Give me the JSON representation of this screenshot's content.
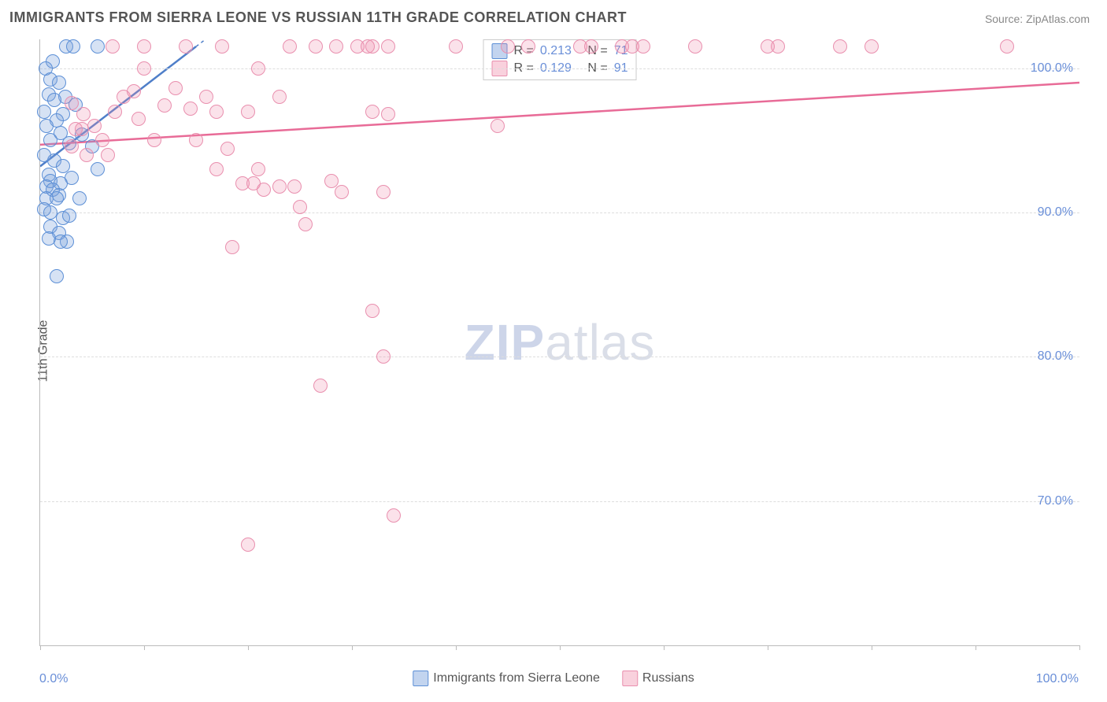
{
  "title": "IMMIGRANTS FROM SIERRA LEONE VS RUSSIAN 11TH GRADE CORRELATION CHART",
  "source": "Source: ZipAtlas.com",
  "ylabel": "11th Grade",
  "watermark": {
    "zip": "ZIP",
    "atlas": "atlas"
  },
  "chart": {
    "type": "scatter",
    "xlim": [
      0,
      100
    ],
    "ylim": [
      60,
      102
    ],
    "ytick_labels": [
      "100.0%",
      "90.0%",
      "80.0%",
      "70.0%"
    ],
    "ytick_vals": [
      100,
      90,
      80,
      70
    ],
    "xaxis_left": "0.0%",
    "xaxis_right": "100.0%",
    "xtick_positions": [
      0,
      10,
      20,
      30,
      40,
      50,
      60,
      70,
      80,
      90,
      100
    ],
    "grid_color": "#dddddd",
    "axis_color": "#bbbbbb",
    "background_color": "#ffffff",
    "marker_radius": 9,
    "series": [
      {
        "key": "blue",
        "label": "Immigrants from Sierra Leone",
        "color_fill": "rgba(120,160,220,0.30)",
        "color_stroke": "#5c8fd6",
        "R": "0.213",
        "N": "71",
        "trend": {
          "x1": 0,
          "y1": 93.2,
          "x2": 15,
          "y2": 101.5,
          "color": "#4f7fc9",
          "width": 2.5,
          "dash_extend": true
        },
        "points": [
          [
            2.5,
            101.5
          ],
          [
            3.2,
            101.5
          ],
          [
            5.5,
            101.5
          ],
          [
            1.2,
            100.5
          ],
          [
            0.5,
            100.0
          ],
          [
            1.0,
            99.2
          ],
          [
            1.8,
            99.0
          ],
          [
            0.8,
            98.2
          ],
          [
            2.4,
            98.0
          ],
          [
            1.4,
            97.8
          ],
          [
            3.4,
            97.5
          ],
          [
            0.4,
            97.0
          ],
          [
            2.2,
            96.8
          ],
          [
            1.6,
            96.4
          ],
          [
            0.6,
            96.0
          ],
          [
            2.0,
            95.5
          ],
          [
            4.0,
            95.4
          ],
          [
            1.0,
            95.0
          ],
          [
            2.8,
            94.8
          ],
          [
            5.0,
            94.6
          ],
          [
            0.4,
            94.0
          ],
          [
            1.4,
            93.6
          ],
          [
            2.2,
            93.2
          ],
          [
            0.8,
            92.6
          ],
          [
            3.0,
            92.4
          ],
          [
            1.0,
            92.2
          ],
          [
            2.0,
            92.0
          ],
          [
            0.6,
            91.8
          ],
          [
            1.2,
            91.6
          ],
          [
            1.8,
            91.2
          ],
          [
            5.5,
            93.0
          ],
          [
            0.6,
            91.0
          ],
          [
            1.6,
            91.0
          ],
          [
            3.8,
            91.0
          ],
          [
            0.4,
            90.2
          ],
          [
            1.0,
            90.0
          ],
          [
            2.2,
            89.6
          ],
          [
            1.0,
            89.0
          ],
          [
            1.8,
            88.6
          ],
          [
            0.8,
            88.2
          ],
          [
            2.6,
            88.0
          ],
          [
            1.6,
            85.6
          ],
          [
            2.0,
            88.0
          ],
          [
            2.8,
            89.8
          ]
        ]
      },
      {
        "key": "pink",
        "label": "Russians",
        "color_fill": "rgba(240,140,170,0.25)",
        "color_stroke": "#e98fae",
        "R": "0.129",
        "N": "91",
        "trend": {
          "x1": 0,
          "y1": 94.7,
          "x2": 100,
          "y2": 99.0,
          "color": "#e86b97",
          "width": 2.5,
          "dash_extend": false
        },
        "points": [
          [
            7.0,
            101.5
          ],
          [
            10.0,
            101.5
          ],
          [
            14.0,
            101.5
          ],
          [
            17.5,
            101.5
          ],
          [
            24.0,
            101.5
          ],
          [
            26.5,
            101.5
          ],
          [
            28.5,
            101.5
          ],
          [
            30.5,
            101.5
          ],
          [
            31.5,
            101.5
          ],
          [
            32.0,
            101.5
          ],
          [
            33.5,
            101.5
          ],
          [
            40.0,
            101.5
          ],
          [
            45.0,
            101.5
          ],
          [
            47.0,
            101.5
          ],
          [
            52.0,
            101.5
          ],
          [
            53.0,
            101.5
          ],
          [
            56.0,
            101.5
          ],
          [
            57.0,
            101.5
          ],
          [
            58.0,
            101.5
          ],
          [
            63.0,
            101.5
          ],
          [
            70.0,
            101.5
          ],
          [
            71.0,
            101.5
          ],
          [
            77.0,
            101.5
          ],
          [
            80.0,
            101.5
          ],
          [
            93.0,
            101.5
          ],
          [
            3.0,
            97.6
          ],
          [
            4.2,
            96.8
          ],
          [
            8.0,
            98.0
          ],
          [
            9.0,
            98.4
          ],
          [
            10.0,
            100.0
          ],
          [
            12.0,
            97.4
          ],
          [
            13.0,
            98.6
          ],
          [
            14.5,
            97.2
          ],
          [
            16.0,
            98.0
          ],
          [
            17.0,
            97.0
          ],
          [
            20.0,
            97.0
          ],
          [
            21.0,
            100.0
          ],
          [
            23.0,
            98.0
          ],
          [
            32.0,
            97.0
          ],
          [
            44.0,
            96.0
          ],
          [
            3.4,
            95.8
          ],
          [
            4.0,
            95.8
          ],
          [
            5.2,
            96.0
          ],
          [
            6.0,
            95.0
          ],
          [
            11.0,
            95.0
          ],
          [
            17.0,
            93.0
          ],
          [
            18.0,
            94.4
          ],
          [
            21.0,
            93.0
          ],
          [
            19.5,
            92.0
          ],
          [
            20.5,
            92.0
          ],
          [
            21.5,
            91.6
          ],
          [
            23.0,
            91.8
          ],
          [
            24.5,
            91.8
          ],
          [
            28.0,
            92.2
          ],
          [
            29.0,
            91.4
          ],
          [
            33.0,
            91.4
          ],
          [
            18.5,
            87.6
          ],
          [
            25.0,
            90.4
          ],
          [
            25.5,
            89.2
          ],
          [
            32.0,
            83.2
          ],
          [
            33.0,
            80.0
          ],
          [
            27.0,
            78.0
          ],
          [
            34.0,
            69.0
          ],
          [
            20.0,
            67.0
          ],
          [
            3.0,
            94.6
          ],
          [
            4.5,
            94.0
          ],
          [
            6.5,
            94.0
          ],
          [
            7.2,
            97.0
          ],
          [
            9.5,
            96.5
          ],
          [
            15.0,
            95.0
          ],
          [
            33.5,
            96.8
          ]
        ]
      }
    ],
    "legend_top": {
      "rows": [
        {
          "swatch": "blue",
          "r_label": "R =",
          "r_val": "0.213",
          "n_label": "N =",
          "n_val": "71"
        },
        {
          "swatch": "pink",
          "r_label": "R =",
          "r_val": "0.129",
          "n_label": "N =",
          "n_val": "91"
        }
      ]
    },
    "legend_bottom": [
      {
        "swatch": "blue",
        "label": "Immigrants from Sierra Leone"
      },
      {
        "swatch": "pink",
        "label": "Russians"
      }
    ]
  }
}
